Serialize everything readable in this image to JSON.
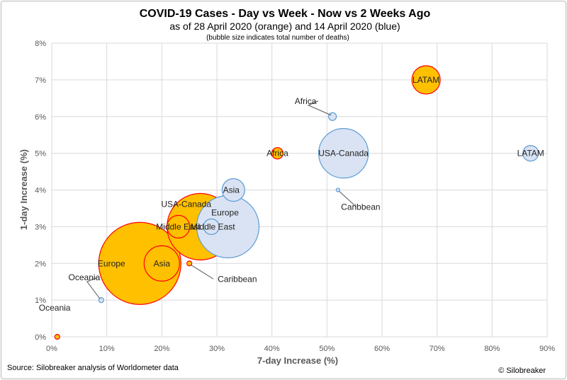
{
  "chart_data": {
    "type": "scatter",
    "title": "COVID-19 Cases - Day vs Week - Now vs 2 Weeks Ago",
    "subtitle": "as of 28 April 2020 (orange) and 14 April 2020 (blue)",
    "note": "(bubble size indicates total number of deaths)",
    "xlabel": "7-day Increase (%)",
    "ylabel": "1-day Increase (%)",
    "xlim": [
      0,
      90
    ],
    "ylim": [
      0,
      8
    ],
    "x_ticks": [
      "0%",
      "10%",
      "20%",
      "30%",
      "40%",
      "50%",
      "60%",
      "70%",
      "80%",
      "90%"
    ],
    "y_ticks": [
      "0%",
      "1%",
      "2%",
      "3%",
      "4%",
      "5%",
      "6%",
      "7%",
      "8%"
    ],
    "grid": true,
    "series": [
      {
        "color": "#ffc000",
        "edge": "#ff0000",
        "points": [
          {
            "label": "Europe",
            "x": 16,
            "y": 2,
            "r": 58
          },
          {
            "label": "USA-Canada",
            "x": 27,
            "y": 3,
            "r": 47
          },
          {
            "label": "Middle East",
            "x": 23,
            "y": 3,
            "r": 16
          },
          {
            "label": "Asia",
            "x": 20,
            "y": 2,
            "r": 25
          },
          {
            "label": "LATAM",
            "x": 68,
            "y": 7,
            "r": 20
          },
          {
            "label": "Africa",
            "x": 41,
            "y": 5,
            "r": 8
          },
          {
            "label": "Caribbean",
            "x": 25,
            "y": 2,
            "r": 3.5
          },
          {
            "label": "Oceania",
            "x": 1,
            "y": 0,
            "r": 3.5
          }
        ]
      },
      {
        "color": "#dae3f3",
        "edge": "#5b9bd5",
        "points": [
          {
            "label": "Europe",
            "x": 32,
            "y": 3,
            "r": 44
          },
          {
            "label": "USA-Canada",
            "x": 53,
            "y": 5,
            "r": 35
          },
          {
            "label": "Asia",
            "x": 33,
            "y": 4,
            "r": 16
          },
          {
            "label": "Middle East",
            "x": 29,
            "y": 3,
            "r": 11
          },
          {
            "label": "LATAM",
            "x": 87,
            "y": 5,
            "r": 11
          },
          {
            "label": "Africa",
            "x": 51,
            "y": 6,
            "r": 5.5
          },
          {
            "label": "Caribbean",
            "x": 52,
            "y": 4,
            "r": 2.5
          },
          {
            "label": "Oceania",
            "x": 9,
            "y": 1,
            "r": 3.5
          }
        ]
      }
    ]
  },
  "footer": {
    "source": "Source: Silobreaker analysis of Worldometer data",
    "copyright": "© Silobreaker"
  }
}
